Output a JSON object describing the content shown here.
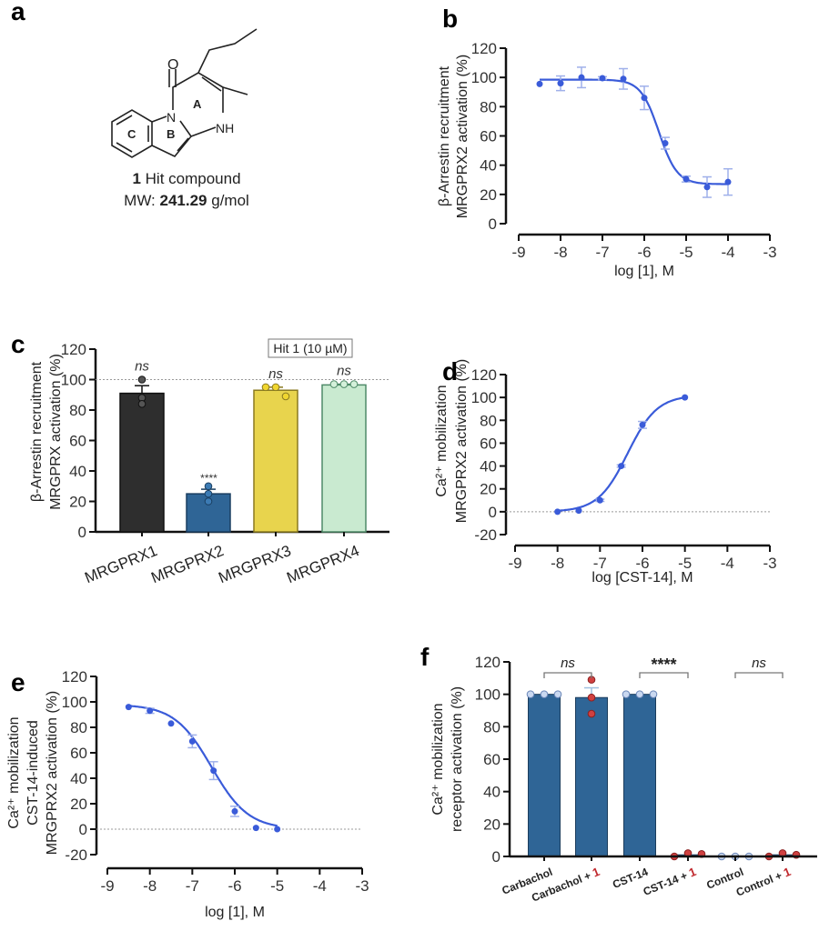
{
  "panel_a": {
    "letter": "a",
    "compound_number": "1",
    "compound_label": "Hit compound",
    "mw_label": "MW:",
    "mw_value": "241.29",
    "mw_unit": "g/mol",
    "atoms": {
      "oxygen": "O",
      "nitrogen": "N",
      "nh": "NH"
    },
    "ring_labels": [
      "A",
      "B",
      "C"
    ]
  },
  "chart_data": [
    {
      "panel": "b",
      "type": "line",
      "ylabel": [
        "β-Arrestin recruitment",
        "MRGPRX2 activation (%)"
      ],
      "xlabel": "log [1], M",
      "xlim": [
        -9,
        -3
      ],
      "ylim": [
        0,
        120
      ],
      "xticks": [
        -9,
        -8,
        -7,
        -6,
        -5,
        -4,
        -3
      ],
      "yticks": [
        0,
        20,
        40,
        60,
        80,
        100,
        120
      ],
      "color": "#3a5bd9",
      "x": [
        -8.5,
        -8,
        -7.5,
        -7,
        -6.5,
        -6,
        -5.5,
        -5,
        -4.5,
        -4
      ],
      "y": [
        95.5,
        96,
        100,
        99.5,
        99,
        86,
        55,
        30.5,
        25,
        28.5
      ],
      "err": [
        0,
        5,
        7,
        1,
        7,
        8,
        4,
        2,
        7,
        9
      ],
      "fit": {
        "top": 98.5,
        "bottom": 27,
        "logx50": -5.65,
        "hill": -2.0
      }
    },
    {
      "panel": "c",
      "type": "bar",
      "ylabel": [
        "β-Arrestin recruitment",
        "MRGPRX activation (%)"
      ],
      "ylim": [
        0,
        120
      ],
      "yticks": [
        0,
        20,
        40,
        60,
        80,
        100,
        120
      ],
      "reference_line": 100,
      "legend": "Hit 1 (10 µM)",
      "categories": [
        "MRGPRX1",
        "MRGPRX2",
        "MRGPRX3",
        "MRGPRX4"
      ],
      "values": [
        91,
        25,
        93,
        96.5
      ],
      "err": [
        5,
        3,
        2,
        0.5
      ],
      "points": [
        [
          100,
          88,
          84
        ],
        [
          30,
          25,
          20
        ],
        [
          95,
          95,
          89
        ],
        [
          97,
          97,
          97
        ]
      ],
      "annotations": [
        "ns",
        "****",
        "ns",
        "ns"
      ],
      "colors": [
        "#2e2e2e",
        "#2f6596",
        "#e8d44d",
        "#c9ead0"
      ],
      "point_colors": [
        "#555555",
        "#3c7bb4",
        "#f0d630",
        "#d4f0da"
      ],
      "edge_colors": [
        "#111111",
        "#1a3e60",
        "#8a7a20",
        "#4e8a68"
      ]
    },
    {
      "panel": "d",
      "type": "line",
      "ylabel": [
        "Ca²⁺ mobilization",
        "MRGPRX2 activation (%)"
      ],
      "xlabel": "log [CST-14], M",
      "xlim": [
        -9,
        -3
      ],
      "ylim": [
        -20,
        120
      ],
      "xticks": [
        -9,
        -8,
        -7,
        -6,
        -5,
        -4,
        -3
      ],
      "yticks": [
        -20,
        0,
        20,
        40,
        60,
        80,
        100,
        120
      ],
      "reference_line": 0,
      "color": "#3a5bd9",
      "x": [
        -8,
        -7.5,
        -7,
        -6.5,
        -6,
        -5
      ],
      "y": [
        0,
        1,
        10,
        40,
        76,
        100
      ],
      "err": [
        0,
        0,
        1,
        1,
        3,
        0
      ],
      "fit": {
        "top": 102,
        "bottom": 0,
        "logx50": -6.35,
        "hill": 1.25
      }
    },
    {
      "panel": "e",
      "type": "line",
      "ylabel": [
        "Ca²⁺ mobilization",
        "CST-14-induced",
        "MRGPRX2 activation (%)"
      ],
      "xlabel": "log [1], M",
      "xlim": [
        -9,
        -3
      ],
      "ylim": [
        -20,
        120
      ],
      "xticks": [
        -9,
        -8,
        -7,
        -6,
        -5,
        -4,
        -3
      ],
      "yticks": [
        -20,
        0,
        20,
        40,
        60,
        80,
        100,
        120
      ],
      "reference_line": 0,
      "color": "#3a5bd9",
      "x": [
        -8.5,
        -8,
        -7.5,
        -7,
        -6.5,
        -6,
        -5.5,
        -5
      ],
      "y": [
        96,
        93,
        83,
        69,
        46,
        14,
        1,
        0
      ],
      "err": [
        0,
        2,
        0,
        5,
        7,
        4,
        0,
        0
      ],
      "fit": {
        "top": 98,
        "bottom": 0,
        "logx50": -6.55,
        "hill": -1.0
      }
    },
    {
      "panel": "f",
      "type": "bar",
      "ylabel": [
        "Ca²⁺ mobilization",
        "receptor activation (%)"
      ],
      "ylim": [
        0,
        120
      ],
      "yticks": [
        0,
        20,
        40,
        60,
        80,
        100,
        120
      ],
      "categories": [
        {
          "text": "Carbachol",
          "suffix": ""
        },
        {
          "text": "Carbachol + ",
          "suffix": "1"
        },
        {
          "text": "CST-14",
          "suffix": ""
        },
        {
          "text": "CST-14 + ",
          "suffix": "1"
        },
        {
          "text": "Control",
          "suffix": ""
        },
        {
          "text": "Control + ",
          "suffix": "1"
        }
      ],
      "values": [
        100,
        98,
        100,
        1,
        0,
        1
      ],
      "err": [
        0,
        6,
        0,
        0.5,
        0,
        0.5
      ],
      "points": [
        [
          100,
          100,
          100
        ],
        [
          109,
          98,
          88
        ],
        [
          100,
          100,
          100
        ],
        [
          0,
          2,
          1.5
        ],
        [
          0,
          0,
          0
        ],
        [
          0,
          2,
          1
        ]
      ],
      "point_colors": [
        "#c9d8f0",
        "#d04040",
        "#c9d8f0",
        "#d04040",
        "#c9d8f0",
        "#d04040"
      ],
      "bar_color": "#2f6596",
      "suffix_color": "#c0282d",
      "comparisons": [
        {
          "from": 0,
          "to": 1,
          "label": "ns"
        },
        {
          "from": 2,
          "to": 3,
          "label": "****"
        },
        {
          "from": 4,
          "to": 5,
          "label": "ns"
        }
      ]
    }
  ]
}
